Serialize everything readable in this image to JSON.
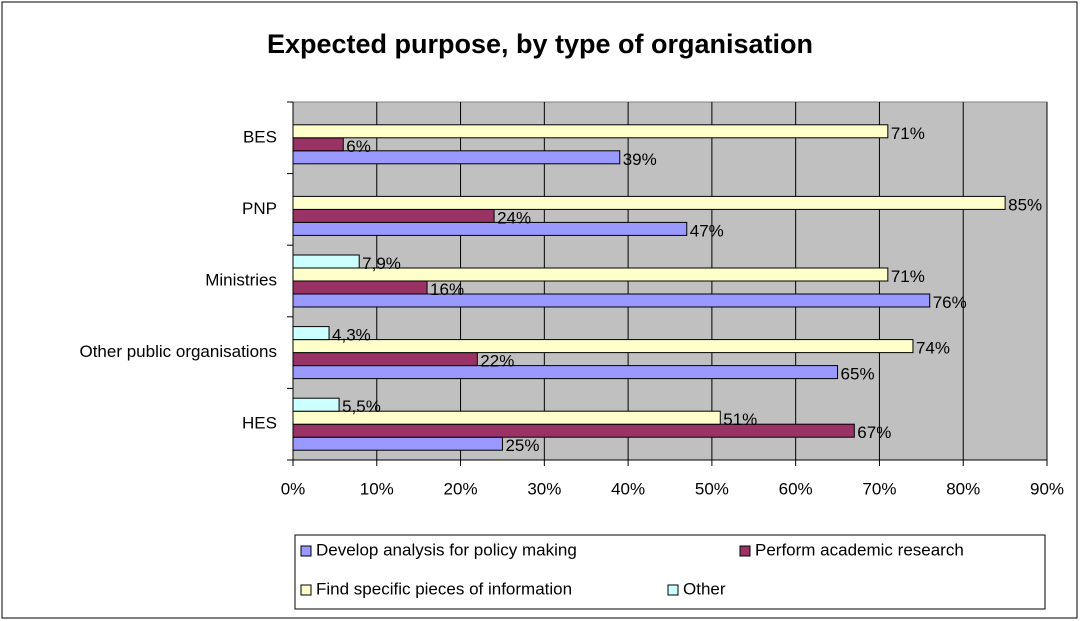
{
  "chart_data": {
    "type": "bar",
    "orientation": "horizontal",
    "title": "Expected purpose, by type of organisation",
    "categories": [
      "BES",
      "PNP",
      "Ministries",
      "Other public organisations",
      "HES"
    ],
    "series": [
      {
        "name": "Develop analysis for policy making",
        "color": "#9999ff",
        "values": [
          39,
          47,
          76,
          65,
          25
        ],
        "value_labels": [
          "39%",
          "47%",
          "76%",
          "65%",
          "25%"
        ]
      },
      {
        "name": "Perform academic research",
        "color": "#993366",
        "values": [
          6,
          24,
          16,
          22,
          67
        ],
        "value_labels": [
          "6%",
          "24%",
          "16%",
          "22%",
          "67%"
        ]
      },
      {
        "name": "Find specific pieces of information",
        "color": "#ffffcc",
        "values": [
          71,
          85,
          71,
          74,
          51
        ],
        "value_labels": [
          "71%",
          "85%",
          "71%",
          "74%",
          "51%"
        ]
      },
      {
        "name": "Other",
        "color": "#ccffff",
        "values": [
          null,
          null,
          7.9,
          4.3,
          5.5
        ],
        "value_labels": [
          null,
          null,
          "7,9%",
          "4,3%",
          "5,5%"
        ]
      }
    ],
    "xlim": [
      0,
      90
    ],
    "xticks": [
      {
        "value": 0,
        "label": "0%"
      },
      {
        "value": 10,
        "label": "10%"
      },
      {
        "value": 20,
        "label": "20%"
      },
      {
        "value": 30,
        "label": "30%"
      },
      {
        "value": 40,
        "label": "40%"
      },
      {
        "value": 50,
        "label": "50%"
      },
      {
        "value": 60,
        "label": "60%"
      },
      {
        "value": 70,
        "label": "70%"
      },
      {
        "value": 80,
        "label": "80%"
      },
      {
        "value": 90,
        "label": "90%"
      }
    ],
    "grid": true,
    "legend": "bottom"
  }
}
